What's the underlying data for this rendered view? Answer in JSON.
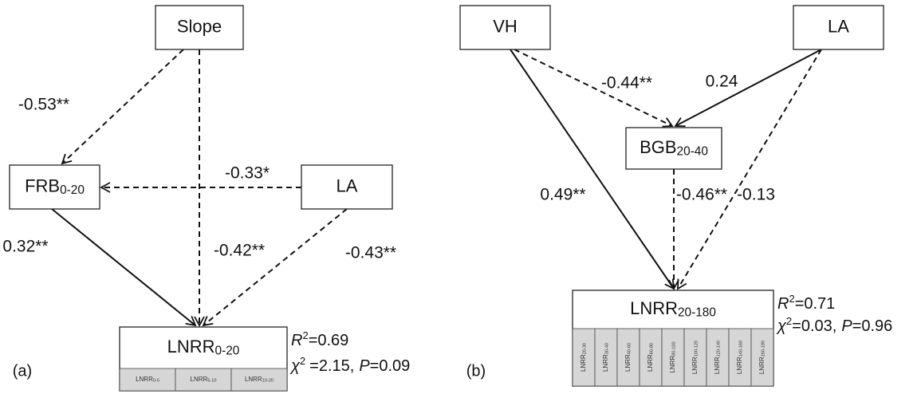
{
  "panels": [
    {
      "label": "(a)",
      "nodes": [
        {
          "name": "Slope"
        },
        {
          "name": "FRB",
          "sub": "0-20"
        },
        {
          "name": "LA"
        },
        {
          "name": "LNRR",
          "sub": "0-20",
          "cells": [
            {
              "name": "LNRR",
              "sub": "0-5"
            },
            {
              "name": "LNRR",
              "sub": "5-10"
            },
            {
              "name": "LNRR",
              "sub": "10-20"
            }
          ]
        }
      ],
      "paths": [
        {
          "coefficient": "-0.53**",
          "line": "dashed"
        },
        {
          "coefficient": "-0.33*",
          "line": "dashed"
        },
        {
          "coefficient": "-0.42**",
          "line": "dashed"
        },
        {
          "coefficient": "0.32**",
          "line": "solid"
        },
        {
          "coefficient": "-0.43**",
          "line": "dashed"
        }
      ],
      "fit": {
        "r_symbol": "R",
        "r_sup": "2",
        "r_value": "=0.69",
        "chi_symbol": "χ",
        "chi_sup": "2",
        "chi_value": "=2.15,",
        "p_symbol": "P",
        "p_value": "=0.09"
      }
    },
    {
      "label": "(b)",
      "nodes": [
        {
          "name": "VH"
        },
        {
          "name": "LA"
        },
        {
          "name": "BGB",
          "sub": "20-40"
        },
        {
          "name": "LNRR",
          "sub": "20-180",
          "cells": [
            {
              "name": "LNRR",
              "sub": "20-30"
            },
            {
              "name": "LNRR",
              "sub": "30-40"
            },
            {
              "name": "LNRR",
              "sub": "40-60"
            },
            {
              "name": "LNRR",
              "sub": "60-80"
            },
            {
              "name": "LNRR",
              "sub": "80-100"
            },
            {
              "name": "LNRR",
              "sub": "100-120"
            },
            {
              "name": "LNRR",
              "sub": "120-140"
            },
            {
              "name": "LNRR",
              "sub": "140-160"
            },
            {
              "name": "LNRR",
              "sub": "160-180"
            }
          ]
        }
      ],
      "paths": [
        {
          "coefficient": "0.49**",
          "line": "solid"
        },
        {
          "coefficient": "-0.44**",
          "line": "dashed"
        },
        {
          "coefficient": "0.24",
          "line": "solid"
        },
        {
          "coefficient": "-0.46**",
          "line": "dashed"
        },
        {
          "coefficient": "-0.13",
          "line": "dashed"
        }
      ],
      "fit": {
        "r_symbol": "R",
        "r_sup": "2",
        "r_value": "=0.71",
        "chi_symbol": "χ",
        "chi_sup": "2",
        "chi_value": "=0.03,",
        "p_symbol": "P",
        "p_value": "=0.96"
      }
    }
  ]
}
